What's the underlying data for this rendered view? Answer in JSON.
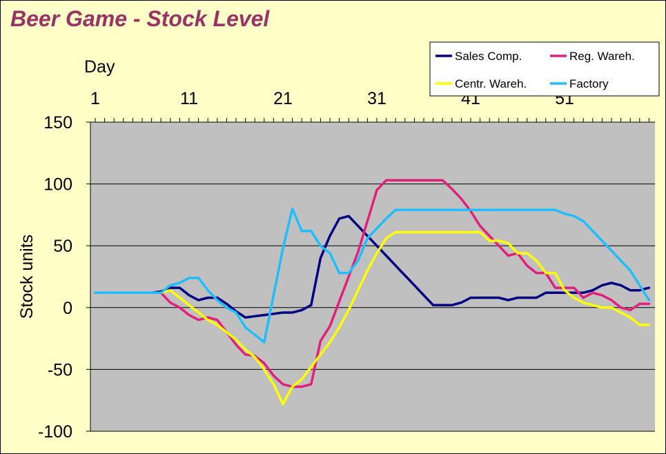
{
  "chart_data": {
    "type": "line",
    "title": "Beer Game - Stock Level",
    "xlabel": "Day",
    "ylabel": "Stock units",
    "xlim": [
      1,
      60
    ],
    "ylim": [
      -100,
      150
    ],
    "x_tick_labels": [
      "1",
      "11",
      "21",
      "31",
      "41",
      "51"
    ],
    "y_tick_labels": [
      "150",
      "100",
      "50",
      "0",
      "-50",
      "-100"
    ],
    "grid": "horizontal",
    "legend_position": "top-right",
    "plot_background": "#c0c0c0",
    "chart_background": "#ffffc8",
    "x": [
      1,
      2,
      3,
      4,
      5,
      6,
      7,
      8,
      9,
      10,
      11,
      12,
      13,
      14,
      15,
      16,
      17,
      18,
      19,
      20,
      21,
      22,
      23,
      24,
      25,
      26,
      27,
      28,
      29,
      30,
      31,
      32,
      33,
      34,
      35,
      36,
      37,
      38,
      39,
      40,
      41,
      42,
      43,
      44,
      45,
      46,
      47,
      48,
      49,
      50,
      51,
      52,
      53,
      54,
      55,
      56,
      57,
      58,
      59,
      60
    ],
    "series": [
      {
        "name": "Sales Comp.",
        "color": "#000080",
        "values": [
          12,
          12,
          12,
          12,
          12,
          12,
          12,
          13,
          16,
          16,
          10,
          6,
          8,
          8,
          3,
          -3,
          -8,
          -7,
          -6,
          -5,
          -4,
          -4,
          -2,
          2,
          40,
          58,
          72,
          74,
          66,
          58,
          50,
          42,
          34,
          26,
          18,
          10,
          2,
          2,
          2,
          4,
          8,
          8,
          8,
          8,
          6,
          8,
          8,
          8,
          12,
          12,
          12,
          12,
          12,
          14,
          18,
          20,
          18,
          14,
          14,
          16
        ]
      },
      {
        "name": "Reg. Wareh.",
        "color": "#e0207a",
        "values": [
          12,
          12,
          12,
          12,
          12,
          12,
          12,
          12,
          4,
          0,
          -6,
          -10,
          -8,
          -10,
          -20,
          -30,
          -38,
          -39,
          -45,
          -55,
          -62,
          -64,
          -64,
          -62,
          -27,
          -15,
          5,
          25,
          45,
          70,
          95,
          103,
          103,
          103,
          103,
          103,
          103,
          103,
          96,
          88,
          78,
          66,
          58,
          50,
          42,
          44,
          34,
          28,
          28,
          16,
          16,
          16,
          8,
          12,
          10,
          6,
          0,
          -2,
          3,
          3
        ]
      },
      {
        "name": "Centr. Wareh.",
        "color": "#ffff00",
        "values": [
          12,
          12,
          12,
          12,
          12,
          12,
          12,
          12,
          14,
          8,
          2,
          -4,
          -10,
          -14,
          -20,
          -26,
          -34,
          -40,
          -50,
          -62,
          -78,
          -64,
          -58,
          -48,
          -38,
          -28,
          -16,
          -2,
          14,
          30,
          44,
          56,
          61,
          61,
          61,
          61,
          61,
          61,
          61,
          61,
          61,
          61,
          54,
          54,
          52,
          44,
          44,
          38,
          28,
          28,
          14,
          8,
          4,
          2,
          0,
          0,
          -4,
          -8,
          -14,
          -14
        ]
      },
      {
        "name": "Factory",
        "color": "#1ebeff",
        "values": [
          12,
          12,
          12,
          12,
          12,
          12,
          12,
          12,
          18,
          20,
          24,
          24,
          14,
          6,
          0,
          -4,
          -16,
          -22,
          -28,
          10,
          48,
          80,
          62,
          62,
          50,
          44,
          28,
          28,
          38,
          56,
          64,
          72,
          79,
          79,
          79,
          79,
          79,
          79,
          79,
          79,
          79,
          79,
          79,
          79,
          79,
          79,
          79,
          79,
          79,
          79,
          76,
          74,
          70,
          62,
          54,
          46,
          38,
          30,
          18,
          6
        ]
      }
    ]
  }
}
